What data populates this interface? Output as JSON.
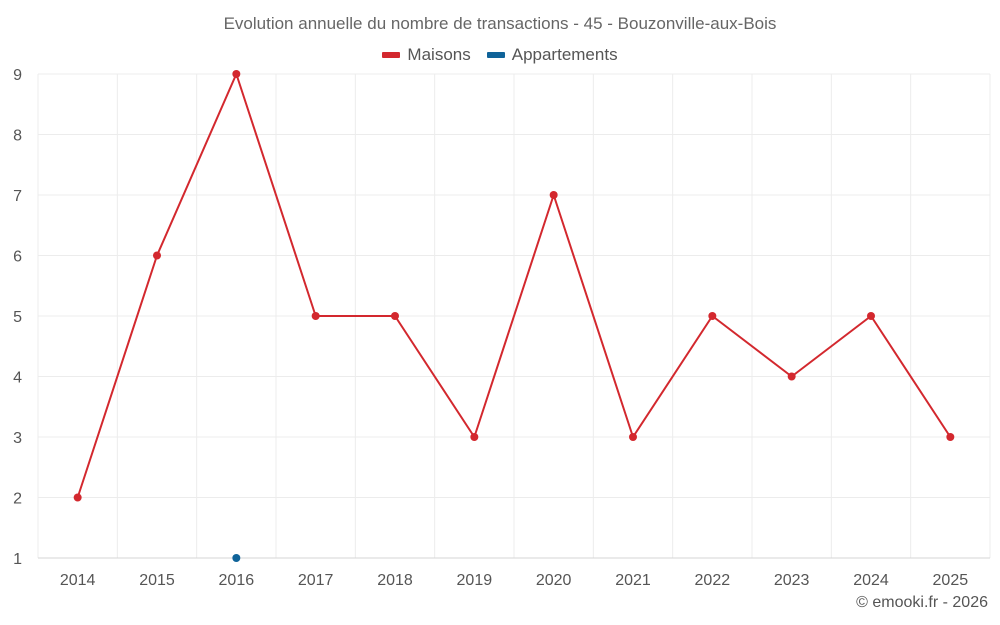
{
  "chart_data": {
    "type": "line",
    "title": "Evolution annuelle du nombre de transactions - 45 - Bouzonville-aux-Bois",
    "xlabel": "",
    "ylabel": "",
    "categories": [
      "2014",
      "2015",
      "2016",
      "2017",
      "2018",
      "2019",
      "2020",
      "2021",
      "2022",
      "2023",
      "2024",
      "2025"
    ],
    "ylim": [
      1,
      9
    ],
    "yticks": [
      1,
      2,
      3,
      4,
      5,
      6,
      7,
      8,
      9
    ],
    "grid": true,
    "legend_position": "top-center",
    "series": [
      {
        "name": "Maisons",
        "color": "#d3282e",
        "values": [
          2,
          6,
          9,
          5,
          5,
          3,
          7,
          3,
          5,
          4,
          5,
          3
        ]
      },
      {
        "name": "Appartements",
        "color": "#0f6399",
        "values": [
          null,
          null,
          1,
          null,
          null,
          null,
          null,
          null,
          null,
          null,
          null,
          null
        ]
      }
    ]
  },
  "credit": "© emooki.fr - 2026",
  "colors": {
    "grid": "#ececec",
    "axis": "#d6d6d6",
    "text": "#555555"
  }
}
